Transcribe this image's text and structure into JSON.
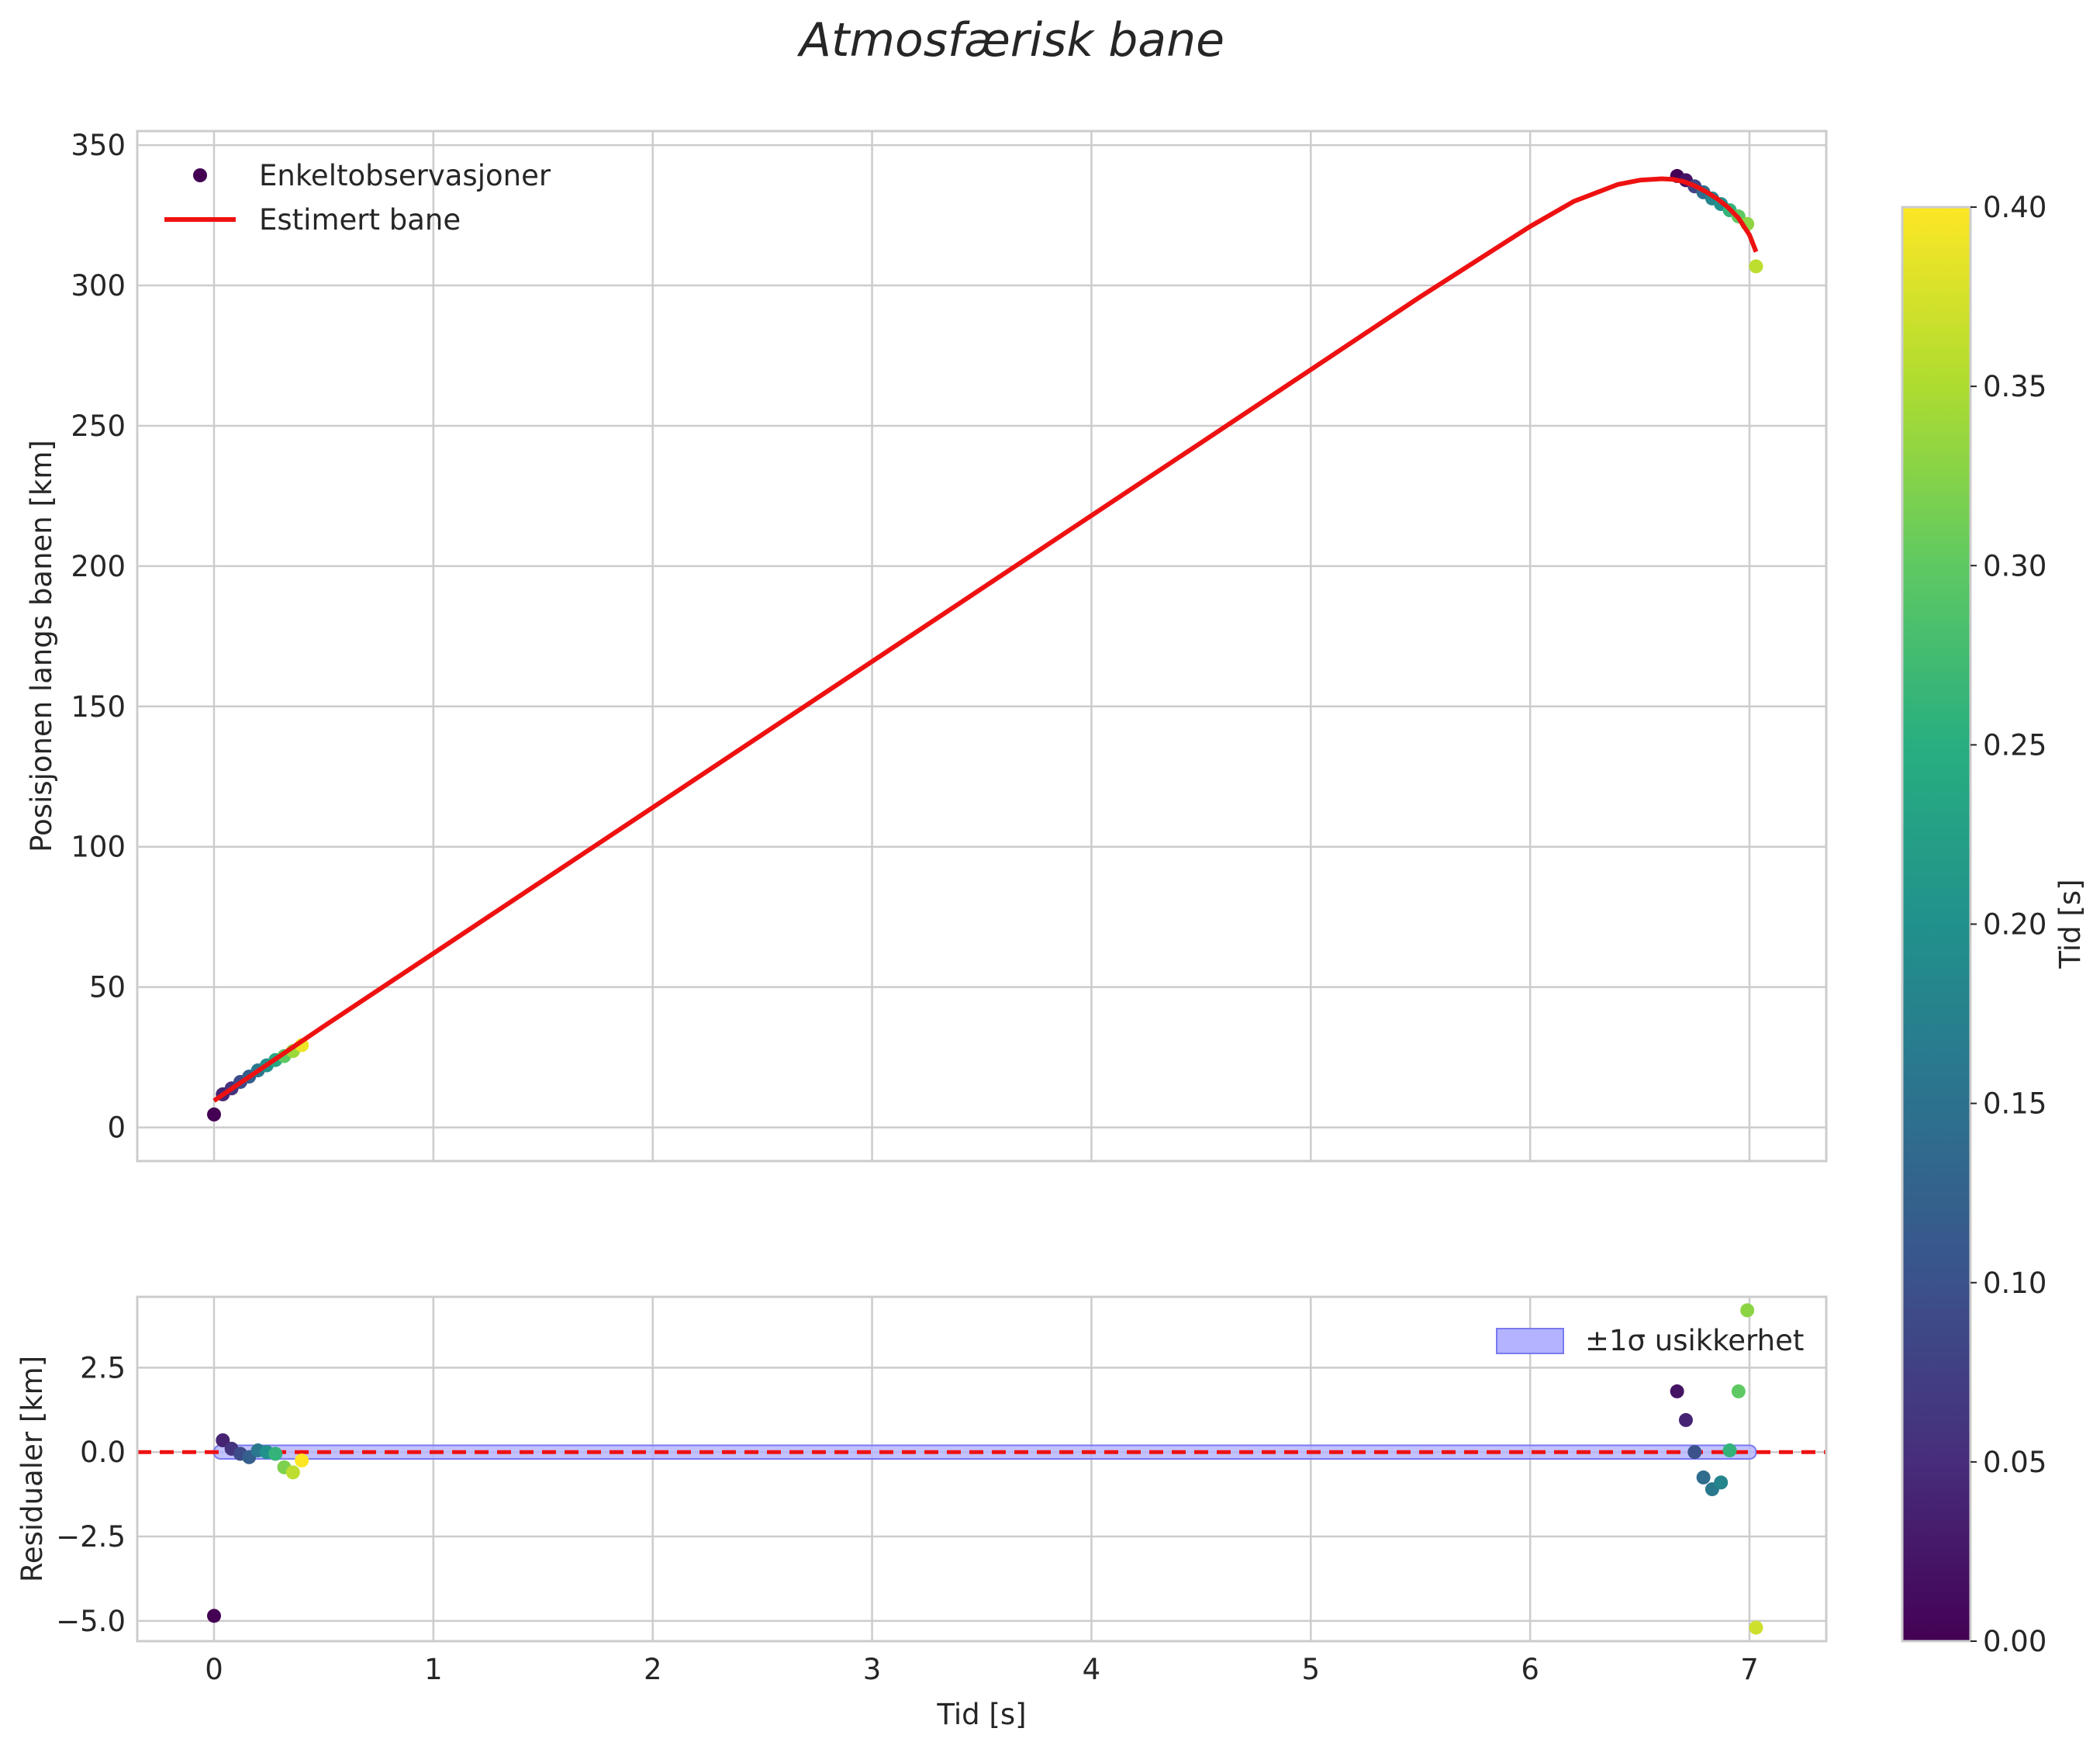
{
  "chart_data": {
    "title": "Atmosfærisk bane",
    "colormap": "viridis",
    "colors": {
      "fit_line": "#ee1111",
      "zero_line": "#ee1111",
      "band_fill": "#b3b3ff",
      "band_edge": "#7a7af0",
      "grid": "#cccccc",
      "text": "#262626"
    },
    "shared_x": {
      "label": "Tid [s]",
      "lim": [
        -0.35,
        7.35
      ],
      "ticks": [
        0,
        1,
        2,
        3,
        4,
        5,
        6,
        7
      ],
      "tick_labels": [
        "0",
        "1",
        "2",
        "3",
        "4",
        "5",
        "6",
        "7"
      ]
    },
    "main_panel": {
      "type": "scatter+line",
      "ylabel": "Posisjonen langs banen [km]",
      "ylim": [
        -12,
        355
      ],
      "yticks": [
        0,
        50,
        100,
        150,
        200,
        250,
        300,
        350
      ],
      "ytick_labels": [
        "0",
        "50",
        "100",
        "150",
        "200",
        "250",
        "300",
        "350"
      ],
      "legend": {
        "location": "upper-left",
        "scatter_label": "Enkeltobservasjoner",
        "line_label": "Estimert bane"
      },
      "observations": [
        {
          "t": 0.0,
          "y": 4.6,
          "c": 0.0
        },
        {
          "t": 0.04,
          "y": 11.8,
          "c": 0.04
        },
        {
          "t": 0.08,
          "y": 13.9,
          "c": 0.06
        },
        {
          "t": 0.12,
          "y": 16.2,
          "c": 0.09
        },
        {
          "t": 0.16,
          "y": 18.1,
          "c": 0.12
        },
        {
          "t": 0.2,
          "y": 20.3,
          "c": 0.16
        },
        {
          "t": 0.24,
          "y": 22.1,
          "c": 0.2
        },
        {
          "t": 0.28,
          "y": 24.0,
          "c": 0.24
        },
        {
          "t": 0.32,
          "y": 25.4,
          "c": 0.3
        },
        {
          "t": 0.36,
          "y": 27.2,
          "c": 0.34
        },
        {
          "t": 0.4,
          "y": 29.3,
          "c": 0.39
        },
        {
          "t": 6.67,
          "y": 339.0,
          "c": 0.0
        },
        {
          "t": 6.71,
          "y": 337.5,
          "c": 0.02
        },
        {
          "t": 6.75,
          "y": 335.3,
          "c": 0.08
        },
        {
          "t": 6.79,
          "y": 333.2,
          "c": 0.14
        },
        {
          "t": 6.83,
          "y": 331.0,
          "c": 0.18
        },
        {
          "t": 6.87,
          "y": 329.0,
          "c": 0.2
        },
        {
          "t": 6.91,
          "y": 326.8,
          "c": 0.26
        },
        {
          "t": 6.95,
          "y": 324.6,
          "c": 0.3
        },
        {
          "t": 6.99,
          "y": 321.9,
          "c": 0.33
        },
        {
          "t": 7.03,
          "y": 306.8,
          "c": 0.36
        }
      ],
      "fit_curve": {
        "t": [
          0,
          0.5,
          1,
          1.5,
          2,
          2.5,
          3,
          3.5,
          4,
          4.5,
          5,
          5.5,
          6,
          6.2,
          6.4,
          6.5,
          6.6,
          6.65,
          6.7,
          6.75,
          6.8,
          6.85,
          6.9,
          6.95,
          7.0,
          7.03
        ],
        "y": [
          9.5,
          36,
          62,
          88,
          114,
          140,
          166,
          192,
          218,
          244,
          270,
          296,
          321,
          330,
          336,
          337.5,
          338,
          337.8,
          337,
          335.5,
          333.5,
          331,
          328,
          324,
          318,
          312
        ]
      }
    },
    "residual_panel": {
      "type": "scatter",
      "ylabel": "Residualer [km]",
      "ylim": [
        -5.6,
        4.6
      ],
      "yticks": [
        -5.0,
        -2.5,
        0.0,
        2.5
      ],
      "ytick_labels": [
        "−5.0",
        "−2.5",
        "0.0",
        "2.5"
      ],
      "legend": {
        "location": "upper-right",
        "band_label": "±1σ usikkerhet"
      },
      "zero_line": 0.0,
      "band": {
        "t_start": 0.0,
        "t_end": 7.03,
        "half_width": 0.2
      },
      "residuals": [
        {
          "t": 0.0,
          "r": -4.85,
          "c": 0.0
        },
        {
          "t": 0.04,
          "r": 0.35,
          "c": 0.04
        },
        {
          "t": 0.08,
          "r": 0.1,
          "c": 0.06
        },
        {
          "t": 0.12,
          "r": -0.05,
          "c": 0.09
        },
        {
          "t": 0.16,
          "r": -0.15,
          "c": 0.12
        },
        {
          "t": 0.2,
          "r": 0.05,
          "c": 0.16
        },
        {
          "t": 0.24,
          "r": 0.0,
          "c": 0.2
        },
        {
          "t": 0.28,
          "r": -0.05,
          "c": 0.26
        },
        {
          "t": 0.32,
          "r": -0.45,
          "c": 0.32
        },
        {
          "t": 0.36,
          "r": -0.6,
          "c": 0.36
        },
        {
          "t": 0.4,
          "r": -0.25,
          "c": 0.4
        },
        {
          "t": 6.67,
          "r": 1.8,
          "c": 0.02
        },
        {
          "t": 6.71,
          "r": 0.95,
          "c": 0.04
        },
        {
          "t": 6.75,
          "r": 0.0,
          "c": 0.1
        },
        {
          "t": 6.79,
          "r": -0.75,
          "c": 0.14
        },
        {
          "t": 6.83,
          "r": -1.1,
          "c": 0.16
        },
        {
          "t": 6.87,
          "r": -0.9,
          "c": 0.18
        },
        {
          "t": 6.91,
          "r": 0.05,
          "c": 0.26
        },
        {
          "t": 6.95,
          "r": 1.8,
          "c": 0.3
        },
        {
          "t": 6.99,
          "r": 4.2,
          "c": 0.33
        },
        {
          "t": 7.03,
          "r": -5.2,
          "c": 0.37
        }
      ]
    },
    "colorbar": {
      "label": "Tid [s]",
      "range": [
        0.0,
        0.4
      ],
      "ticks": [
        0.0,
        0.05,
        0.1,
        0.15,
        0.2,
        0.25,
        0.3,
        0.35,
        0.4
      ],
      "tick_labels": [
        "0.00",
        "0.05",
        "0.10",
        "0.15",
        "0.20",
        "0.25",
        "0.30",
        "0.35",
        "0.40"
      ]
    }
  }
}
